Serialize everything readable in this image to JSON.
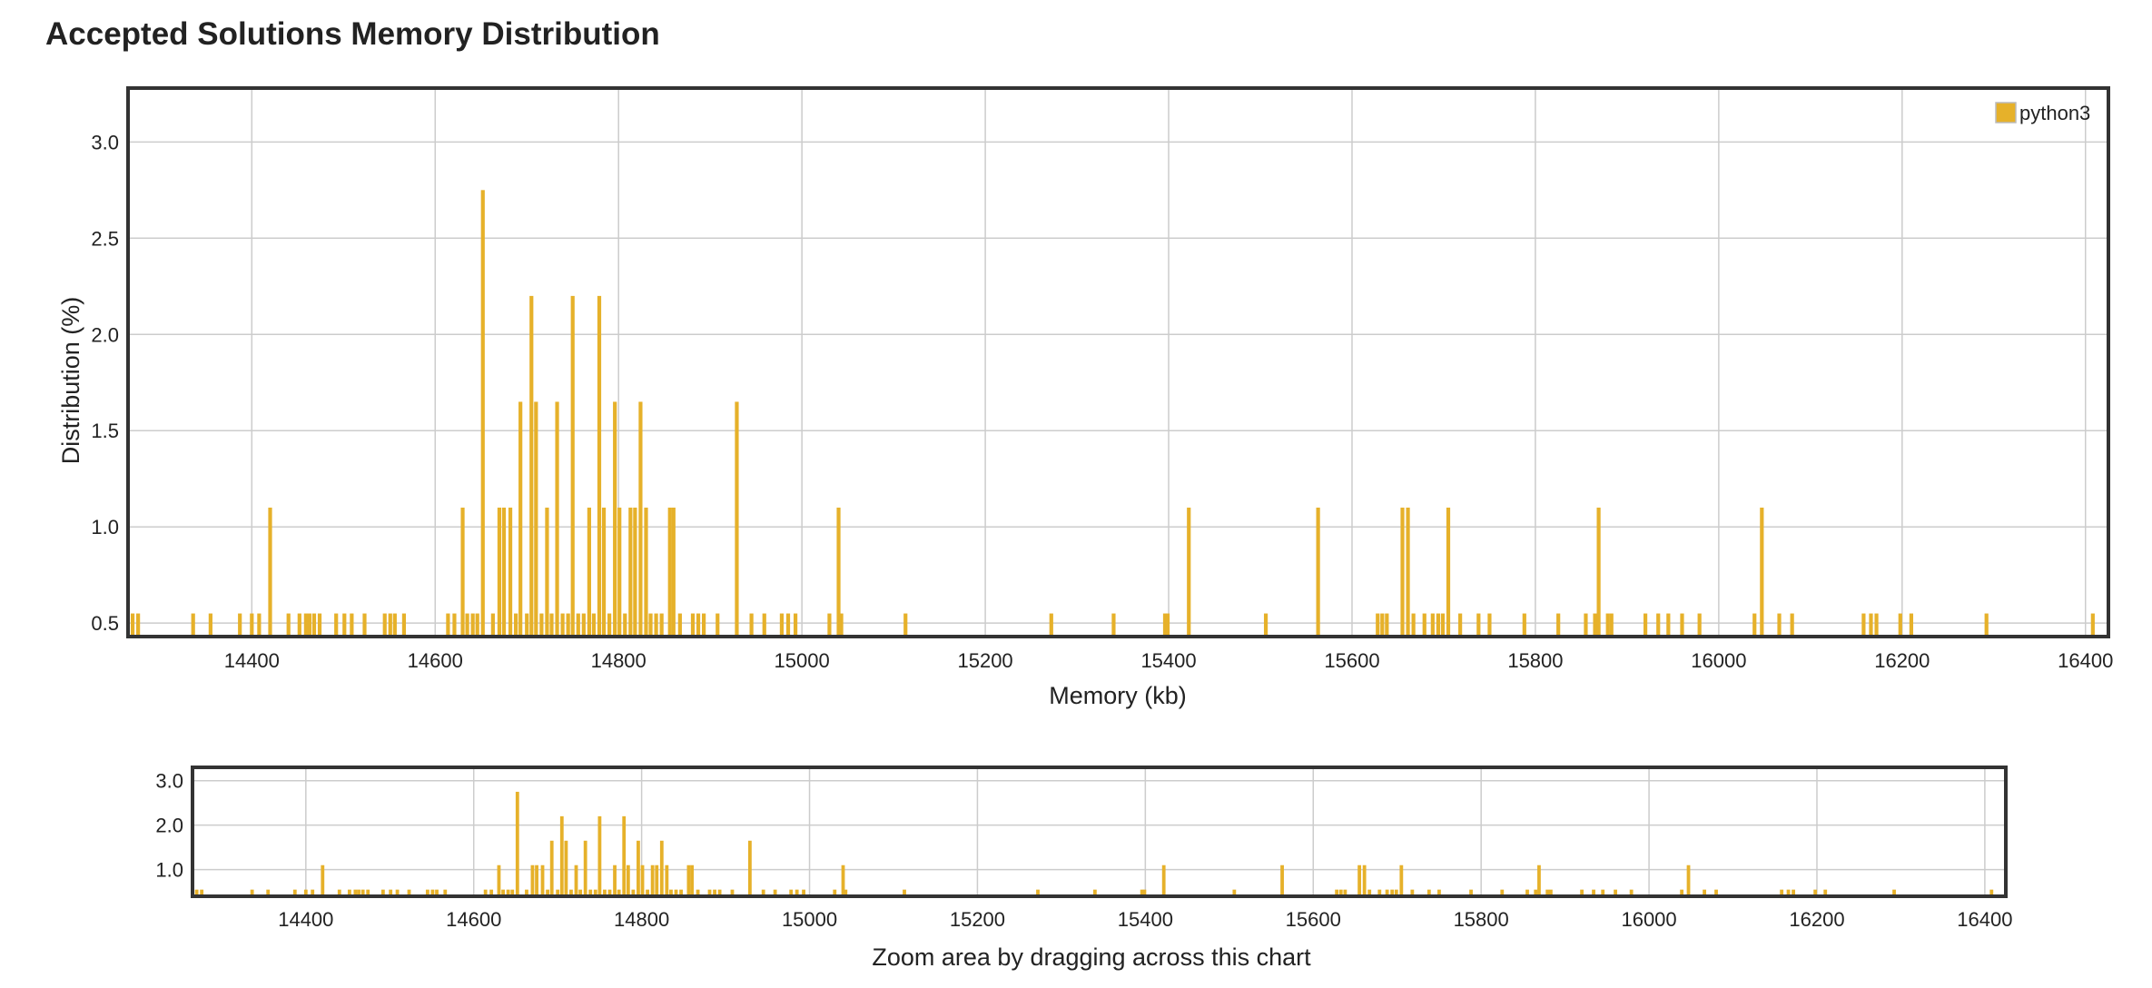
{
  "page": {
    "title": "Accepted Solutions Memory Distribution"
  },
  "colors": {
    "bar": "#e6b12a",
    "grid": "#cccccc",
    "frame": "#333333"
  },
  "chart_data": [
    {
      "type": "bar",
      "title": "Accepted Solutions Memory Distribution",
      "xlabel": "Memory (kb)",
      "ylabel": "Distribution (%)",
      "xlim": [
        14265,
        16425
      ],
      "ylim": [
        0.43,
        3.28
      ],
      "xticks": [
        14400,
        14600,
        14800,
        15000,
        15200,
        15400,
        15600,
        15800,
        16000,
        16200,
        16400
      ],
      "yticks": [
        0.5,
        1.0,
        1.5,
        2.0,
        2.5,
        3.0
      ],
      "ytick_labels": [
        "0.5",
        "1.0",
        "1.5",
        "2.0",
        "2.5",
        "3.0"
      ],
      "grid": true,
      "legend_position": "top-right",
      "series": [
        {
          "name": "python3",
          "x": [
            14270,
            14276,
            14336,
            14355,
            14387,
            14400,
            14408,
            14420,
            14440,
            14452,
            14459,
            14463,
            14468,
            14474,
            14492,
            14501,
            14509,
            14523,
            14545,
            14551,
            14556,
            14566,
            14614,
            14621,
            14630,
            14635,
            14641,
            14646,
            14652,
            14663,
            14670,
            14675,
            14682,
            14688,
            14693,
            14700,
            14705,
            14710,
            14716,
            14722,
            14727,
            14733,
            14739,
            14745,
            14750,
            14756,
            14762,
            14768,
            14773,
            14779,
            14784,
            14790,
            14796,
            14801,
            14807,
            14813,
            14818,
            14824,
            14830,
            14835,
            14841,
            14847,
            14856,
            14860,
            14867,
            14881,
            14887,
            14893,
            14908,
            14929,
            14945,
            14959,
            14978,
            14985,
            14993,
            15030,
            15040,
            15043,
            15113,
            15272,
            15340,
            15396,
            15399,
            15422,
            15506,
            15563,
            15628,
            15633,
            15638,
            15655,
            15661,
            15667,
            15679,
            15688,
            15694,
            15699,
            15705,
            15718,
            15738,
            15750,
            15788,
            15825,
            15855,
            15865,
            15869,
            15879,
            15883,
            15920,
            15934,
            15945,
            15960,
            15979,
            16039,
            16047,
            16066,
            16080,
            16158,
            16166,
            16172,
            16198,
            16210,
            16292,
            16408
          ],
          "values": [
            0.55,
            0.55,
            0.55,
            0.55,
            0.55,
            0.55,
            0.55,
            1.1,
            0.55,
            0.55,
            0.55,
            0.55,
            0.55,
            0.55,
            0.55,
            0.55,
            0.55,
            0.55,
            0.55,
            0.55,
            0.55,
            0.55,
            0.55,
            0.55,
            1.1,
            0.55,
            0.55,
            0.55,
            2.75,
            0.55,
            1.1,
            1.1,
            1.1,
            0.55,
            1.65,
            0.55,
            2.2,
            1.65,
            0.55,
            1.1,
            0.55,
            1.65,
            0.55,
            0.55,
            2.2,
            0.55,
            0.55,
            1.1,
            0.55,
            2.2,
            1.1,
            0.55,
            1.65,
            1.1,
            0.55,
            1.1,
            1.1,
            1.65,
            1.1,
            0.55,
            0.55,
            0.55,
            1.1,
            1.1,
            0.55,
            0.55,
            0.55,
            0.55,
            0.55,
            1.65,
            0.55,
            0.55,
            0.55,
            0.55,
            0.55,
            0.55,
            1.1,
            0.55,
            0.55,
            0.55,
            0.55,
            0.55,
            0.55,
            1.1,
            0.55,
            1.1,
            0.55,
            0.55,
            0.55,
            1.1,
            1.1,
            0.55,
            0.55,
            0.55,
            0.55,
            0.55,
            1.1,
            0.55,
            0.55,
            0.55,
            0.55,
            0.55,
            0.55,
            0.55,
            1.1,
            0.55,
            0.55,
            0.55,
            0.55,
            0.55,
            0.55,
            0.55,
            0.55,
            1.1,
            0.55,
            0.55,
            0.55,
            0.55,
            0.55,
            0.55,
            0.55,
            0.55,
            0.55
          ]
        }
      ]
    },
    {
      "type": "bar",
      "role": "overview",
      "xlabel": "Zoom area by dragging across this chart",
      "xlim": [
        14265,
        16425
      ],
      "ylim": [
        0.4,
        3.3
      ],
      "yticks": [
        1.0,
        2.0,
        3.0
      ],
      "ytick_labels": [
        "1.0",
        "2.0",
        "3.0"
      ],
      "grid": true
    }
  ]
}
